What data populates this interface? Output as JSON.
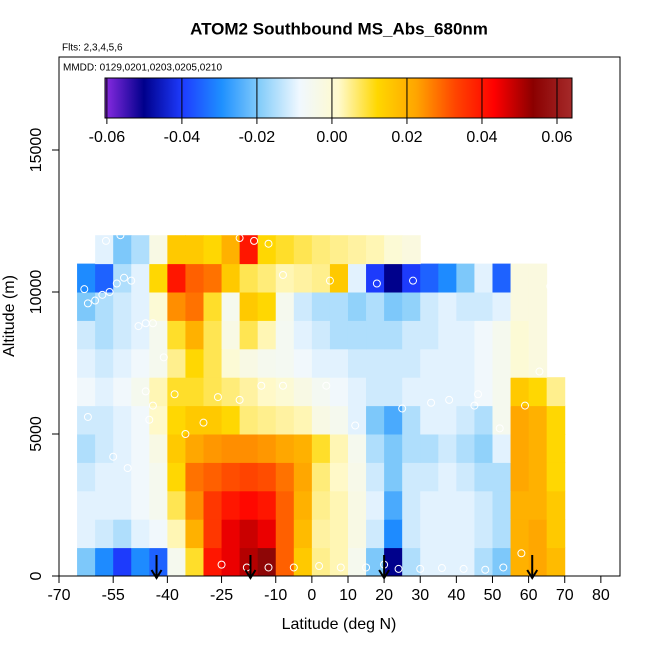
{
  "chart_data": {
    "type": "heatmap",
    "title": "ATOM2 Southbound MS_Abs_680nm",
    "subtitle": "Flts: 2,3,4,5,6",
    "annotation": "MMDD: 0129,0201,0203,0205,0210",
    "x_label": "Latitude (deg N)",
    "y_label": "Altitude (m)",
    "xlim": [
      -70,
      85.3
    ],
    "ylim": [
      0,
      18275
    ],
    "xticks": [
      -70,
      -55,
      -40,
      -25,
      -10,
      0,
      10,
      20,
      30,
      40,
      50,
      60,
      70,
      80
    ],
    "yticks": [
      0,
      5000,
      10000,
      15000
    ],
    "clim": [
      -0.0605,
      0.064
    ],
    "cticks": [
      -0.06,
      -0.04,
      -0.02,
      {
        "value": 0,
        "label": "0.00"
      },
      0.02,
      0.04,
      0.06
    ],
    "colormap": [
      "#8a2be2",
      "#00008b",
      "#1e3cff",
      "#1e90ff",
      "#87cefa",
      "#f0f8ff",
      "#fffacd",
      "#ffd700",
      "#ffa500",
      "#ff4500",
      "#ff0000",
      "#8b0000",
      "#a52a2a"
    ],
    "x_edges": [
      -65,
      -60,
      -55,
      -50,
      -45,
      -40,
      -35,
      -30,
      -25,
      -20,
      -15,
      -10,
      -5,
      0,
      5,
      10,
      15,
      20,
      25,
      30,
      35,
      40,
      45,
      50,
      55,
      60,
      65,
      70
    ],
    "y_edges": [
      0,
      1000,
      2000,
      3000,
      4000,
      5000,
      6000,
      7000,
      8000,
      9000,
      10000,
      11000,
      12000
    ],
    "values": [
      [
        -0.02,
        -0.03,
        -0.04,
        -0.03,
        -0.035,
        -0.005,
        0.01,
        0.04,
        0.045,
        0.05,
        0.055,
        0.03,
        0.015,
        0.005,
        0.003,
        -0.005,
        -0.02,
        -0.05,
        -0.015,
        -0.01,
        -0.01,
        -0.01,
        -0.015,
        -0.02,
        0.02,
        0.022,
        0.018
      ],
      [
        -0.01,
        -0.012,
        -0.015,
        -0.01,
        -0.008,
        0.003,
        0.02,
        0.035,
        0.045,
        0.048,
        0.045,
        0.03,
        0.018,
        0.004,
        0.003,
        -0.003,
        -0.012,
        -0.03,
        -0.012,
        -0.01,
        -0.01,
        -0.01,
        -0.012,
        -0.015,
        0.02,
        0.022,
        0.015
      ],
      [
        -0.01,
        -0.01,
        -0.01,
        -0.008,
        -0.005,
        0.008,
        0.025,
        0.035,
        0.04,
        0.042,
        0.04,
        0.03,
        0.02,
        0.005,
        0.003,
        -0.003,
        -0.01,
        -0.025,
        -0.012,
        -0.01,
        -0.01,
        -0.01,
        -0.012,
        -0.015,
        0.02,
        0.02,
        0.015
      ],
      [
        -0.012,
        -0.01,
        -0.01,
        -0.008,
        -0.005,
        0.012,
        0.028,
        0.03,
        0.032,
        0.033,
        0.032,
        0.028,
        0.022,
        0.006,
        0.002,
        -0.004,
        -0.012,
        -0.02,
        -0.012,
        -0.012,
        -0.01,
        -0.012,
        -0.015,
        -0.015,
        0.022,
        0.02,
        0.012
      ],
      [
        -0.015,
        -0.012,
        -0.01,
        -0.008,
        -0.003,
        0.015,
        0.022,
        0.024,
        0.025,
        0.025,
        0.024,
        0.022,
        0.02,
        0.01,
        0.003,
        -0.005,
        -0.015,
        -0.02,
        -0.015,
        -0.015,
        -0.012,
        -0.015,
        -0.018,
        -0.01,
        0.022,
        0.02,
        0.012
      ],
      [
        -0.012,
        -0.012,
        -0.01,
        -0.008,
        0.002,
        0.012,
        0.015,
        0.015,
        0.012,
        0.006,
        0.005,
        0.004,
        0.003,
        -0.003,
        -0.005,
        -0.01,
        -0.02,
        -0.025,
        -0.015,
        -0.01,
        -0.01,
        -0.012,
        -0.015,
        -0.005,
        0.022,
        0.02,
        0.012
      ],
      [
        -0.008,
        -0.01,
        -0.008,
        -0.005,
        0.003,
        0.01,
        0.01,
        0.008,
        0.006,
        0.004,
        0.002,
        0.0,
        -0.003,
        -0.006,
        -0.008,
        -0.01,
        -0.012,
        -0.012,
        -0.01,
        -0.01,
        -0.01,
        -0.01,
        -0.008,
        -0.005,
        0.015,
        0.012,
        0.005
      ],
      [
        -0.01,
        -0.012,
        -0.01,
        -0.008,
        -0.005,
        0.005,
        0.012,
        0.008,
        0.0,
        -0.003,
        -0.005,
        -0.006,
        -0.008,
        -0.01,
        -0.01,
        -0.012,
        -0.012,
        -0.012,
        -0.012,
        -0.01,
        -0.01,
        -0.01,
        -0.008,
        -0.005,
        0.0,
        -0.002,
        null
      ],
      [
        -0.012,
        -0.015,
        -0.012,
        -0.01,
        -0.005,
        0.01,
        0.02,
        0.008,
        -0.003,
        0.008,
        0.003,
        -0.006,
        -0.01,
        -0.012,
        -0.015,
        -0.015,
        -0.015,
        -0.015,
        -0.012,
        -0.012,
        -0.01,
        -0.01,
        -0.008,
        -0.005,
        0.0,
        -0.002,
        null
      ],
      [
        -0.02,
        -0.015,
        -0.012,
        -0.01,
        0.0,
        0.025,
        0.028,
        0.01,
        -0.005,
        0.015,
        0.012,
        -0.005,
        -0.012,
        -0.015,
        -0.015,
        -0.018,
        -0.015,
        -0.02,
        -0.018,
        -0.012,
        -0.01,
        -0.012,
        -0.012,
        -0.01,
        -0.002,
        -0.002,
        null
      ],
      [
        -0.03,
        -0.035,
        -0.015,
        -0.01,
        0.012,
        0.04,
        0.03,
        0.028,
        0.015,
        0.008,
        0.006,
        0.003,
        0.004,
        0.005,
        0.015,
        -0.01,
        -0.04,
        -0.05,
        -0.04,
        -0.035,
        -0.03,
        -0.02,
        -0.01,
        -0.035,
        -0.002,
        -0.002,
        null
      ],
      [
        null,
        -0.01,
        -0.02,
        -0.015,
        -0.003,
        0.015,
        0.015,
        0.012,
        0.02,
        0.04,
        0.012,
        0.01,
        0.008,
        0.006,
        0.005,
        0.004,
        0.003,
        0.0,
        -0.002,
        null,
        null,
        null,
        null,
        null,
        null,
        null,
        null
      ]
    ],
    "points": {
      "lat": [
        -63,
        -62,
        -60,
        -58,
        -56,
        -54,
        -52,
        -50,
        -48,
        -46,
        -44,
        -41,
        -57,
        -53,
        -50,
        -46,
        -44,
        -38,
        -30,
        -26,
        -20,
        -14,
        -8,
        -62,
        -55,
        -51,
        -45,
        -35,
        -25,
        -18,
        -12,
        -5,
        2,
        8,
        15,
        20,
        24,
        30,
        36,
        42,
        48,
        53,
        58,
        63,
        -8,
        5,
        18,
        28,
        33,
        45,
        52,
        59,
        66,
        -20,
        -16,
        -12,
        4,
        12,
        25,
        38,
        46
      ],
      "alt": [
        10100,
        9600,
        9700,
        9900,
        10000,
        10300,
        10500,
        10400,
        8800,
        8900,
        8900,
        7700,
        11800,
        12000,
        12300,
        6500,
        6000,
        6400,
        5400,
        6300,
        6200,
        6700,
        6700,
        5600,
        4200,
        3800,
        5500,
        5000,
        400,
        300,
        300,
        300,
        350,
        300,
        300,
        400,
        250,
        250,
        280,
        250,
        220,
        300,
        800,
        7200,
        10600,
        10400,
        10300,
        10400,
        6100,
        6000,
        5200,
        6000,
        10200,
        11900,
        11800,
        11700,
        6700,
        5300,
        5900,
        6200,
        6400
      ]
    },
    "arrow_lats": [
      -43,
      -17,
      20,
      61
    ]
  }
}
